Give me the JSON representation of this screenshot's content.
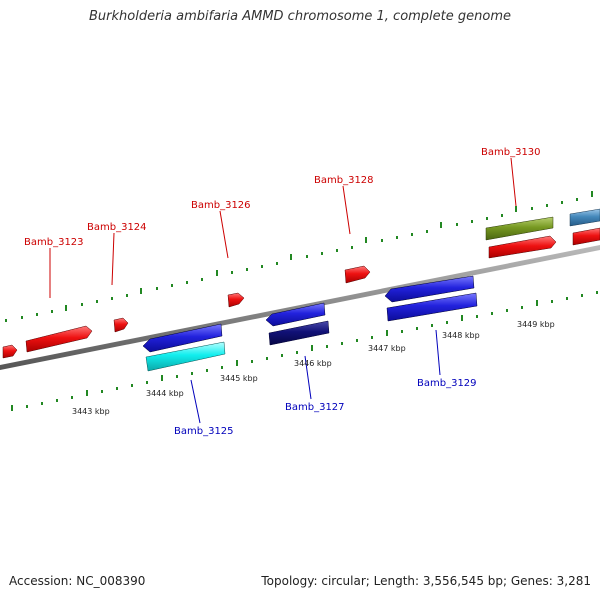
{
  "title": "Burkholderia ambifaria AMMD chromosome 1, complete genome",
  "footer": {
    "accession": "Accession: NC_008390",
    "topology": "Topology: circular; Length: 3,556,545 bp; Genes: 3,281"
  },
  "colors": {
    "forward_label": "#cc0000",
    "reverse_label": "#0000bb",
    "backbone": "#888888",
    "tick": "#228822",
    "gene_red": "#ee1111",
    "gene_blue": "#2222dd",
    "gene_cyan": "#11eeee",
    "gene_navy": "#111177",
    "gene_olive": "#779922",
    "gene_steel": "#4488bb"
  },
  "scale_labels": [
    "3443 kbp",
    "3444 kbp",
    "3445 kbp",
    "3446 kbp",
    "3447 kbp",
    "3448 kbp",
    "3449 kbp"
  ],
  "gene_labels": [
    {
      "name": "Bamb_3123",
      "strand": "forward"
    },
    {
      "name": "Bamb_3124",
      "strand": "forward"
    },
    {
      "name": "Bamb_3126",
      "strand": "forward"
    },
    {
      "name": "Bamb_3128",
      "strand": "forward"
    },
    {
      "name": "Bamb_3130",
      "strand": "forward"
    },
    {
      "name": "Bamb_3125",
      "strand": "reverse"
    },
    {
      "name": "Bamb_3127",
      "strand": "reverse"
    },
    {
      "name": "Bamb_3129",
      "strand": "reverse"
    }
  ]
}
